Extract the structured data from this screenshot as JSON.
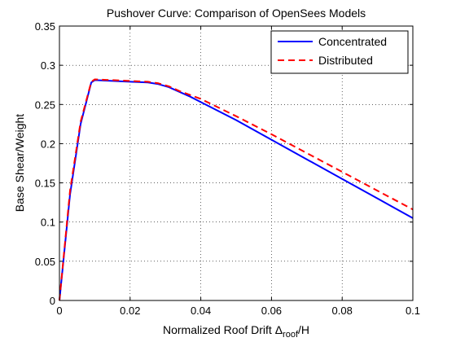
{
  "chart_data": {
    "type": "line",
    "title": "Pushover Curve:  Comparison of OpenSees Models",
    "xlabel": {
      "main": "Normalized Roof Drift Δ",
      "sub": "roof",
      "tail": "/H"
    },
    "ylabel": "Base Shear/Weight",
    "xlim": [
      0,
      0.1
    ],
    "ylim": [
      0,
      0.35
    ],
    "xticks": [
      0,
      0.02,
      0.04,
      0.06,
      0.08,
      0.1
    ],
    "xtick_labels": [
      "0",
      "0.02",
      "0.04",
      "0.06",
      "0.08",
      "0.1"
    ],
    "yticks": [
      0,
      0.05,
      0.1,
      0.15,
      0.2,
      0.25,
      0.3,
      0.35
    ],
    "ytick_labels": [
      "0",
      "0.05",
      "0.1",
      "0.15",
      "0.2",
      "0.25",
      "0.3",
      "0.35"
    ],
    "grid": true,
    "legend_position": "top-right",
    "series": [
      {
        "name": "Concentrated",
        "color": "#0000ff",
        "dash": "solid",
        "x": [
          0,
          0.003,
          0.006,
          0.009,
          0.01,
          0.015,
          0.02,
          0.025,
          0.028,
          0.031,
          0.034,
          0.037,
          0.04,
          0.05,
          0.06,
          0.07,
          0.08,
          0.09,
          0.1
        ],
        "y": [
          0,
          0.135,
          0.225,
          0.278,
          0.281,
          0.28,
          0.279,
          0.278,
          0.276,
          0.272,
          0.266,
          0.26,
          0.253,
          0.23,
          0.205,
          0.18,
          0.155,
          0.13,
          0.105
        ]
      },
      {
        "name": "Distributed",
        "color": "#ff0000",
        "dash": "dashed",
        "x": [
          0,
          0.003,
          0.006,
          0.009,
          0.01,
          0.015,
          0.02,
          0.025,
          0.028,
          0.031,
          0.034,
          0.037,
          0.04,
          0.05,
          0.06,
          0.07,
          0.08,
          0.09,
          0.1
        ],
        "y": [
          0,
          0.14,
          0.228,
          0.279,
          0.282,
          0.281,
          0.28,
          0.279,
          0.277,
          0.273,
          0.267,
          0.262,
          0.257,
          0.235,
          0.212,
          0.188,
          0.164,
          0.14,
          0.116
        ]
      }
    ]
  }
}
